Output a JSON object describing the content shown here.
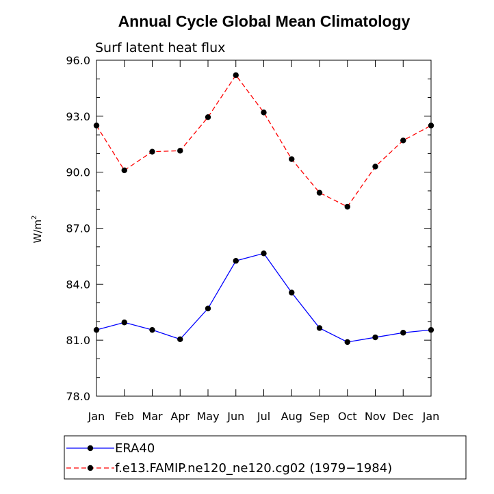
{
  "chart_data": {
    "type": "line",
    "title": "Annual Cycle Global Mean Climatology",
    "subtitle": "Surf latent heat flux",
    "xlabel": "",
    "ylabel": "W/m",
    "ylabel_superscript": "2",
    "ylim": [
      78.0,
      96.0
    ],
    "yticks": [
      "78.0",
      "81.0",
      "84.0",
      "87.0",
      "90.0",
      "93.0",
      "96.0"
    ],
    "yticks_values": [
      78,
      81,
      84,
      87,
      90,
      93,
      96
    ],
    "categories": [
      "Jan",
      "Feb",
      "Mar",
      "Apr",
      "May",
      "Jun",
      "Jul",
      "Aug",
      "Sep",
      "Oct",
      "Nov",
      "Dec",
      "Jan"
    ],
    "series": [
      {
        "name": "ERA40",
        "color": "#0000ff",
        "dash": "solid",
        "values": [
          81.55,
          81.95,
          81.55,
          81.05,
          82.7,
          85.25,
          85.65,
          83.55,
          81.65,
          80.9,
          81.15,
          81.4,
          81.55
        ]
      },
      {
        "name": "f.e13.FAMIP.ne120_ne120.cg02 (1979−1984)",
        "color": "#ff0000",
        "dash": "dashed",
        "values": [
          92.5,
          90.1,
          91.1,
          91.15,
          92.95,
          95.2,
          93.2,
          90.7,
          88.9,
          88.15,
          90.3,
          91.7,
          92.5
        ]
      }
    ],
    "legend_position": "bottom"
  }
}
